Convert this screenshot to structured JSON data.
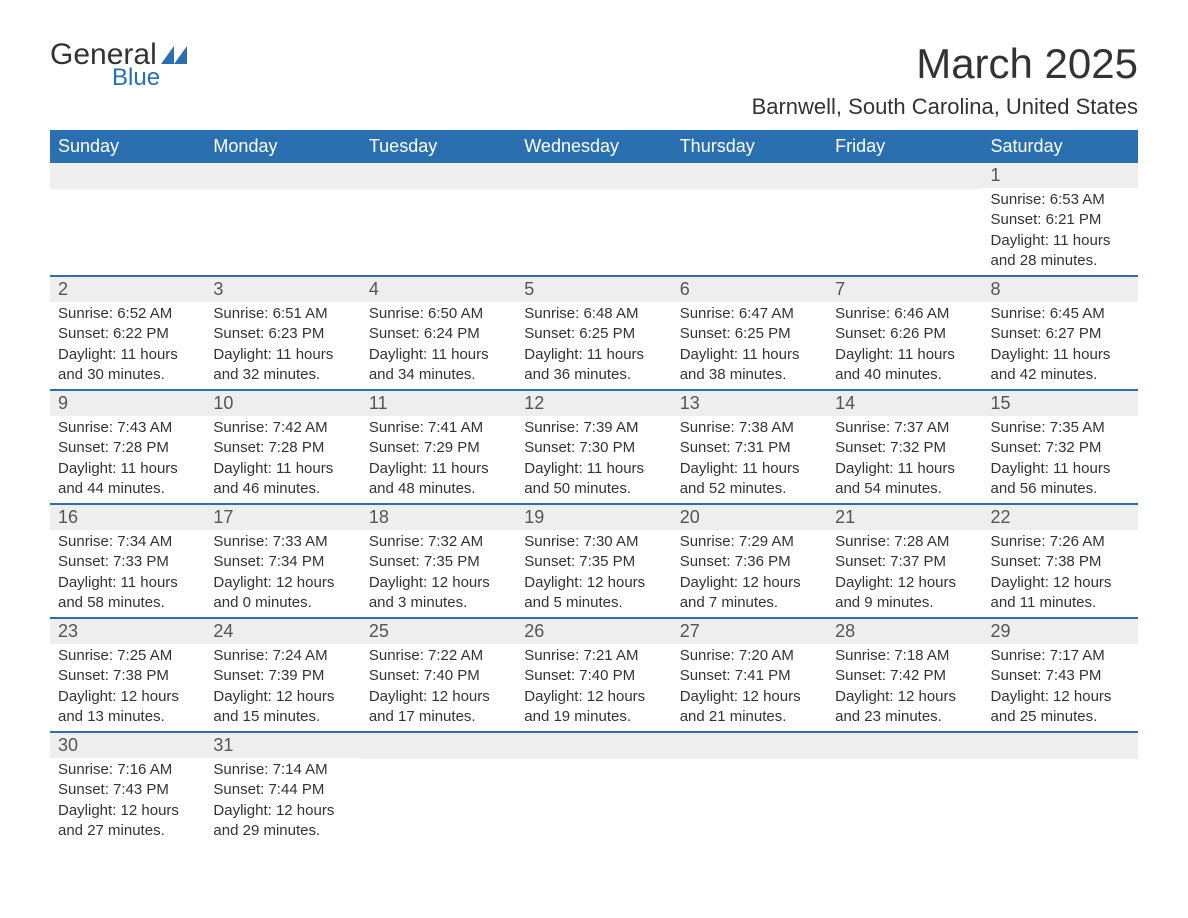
{
  "logo": {
    "word1": "General",
    "word2": "Blue",
    "shape_color": "#2a6fb0"
  },
  "title": "March 2025",
  "subtitle": "Barnwell, South Carolina, United States",
  "colors": {
    "header_bg": "#2a6fb0",
    "header_text": "#ffffff",
    "daynum_bg": "#eeeeee",
    "row_divider": "#2a6fb0",
    "body_text": "#333333"
  },
  "weekdays": [
    "Sunday",
    "Monday",
    "Tuesday",
    "Wednesday",
    "Thursday",
    "Friday",
    "Saturday"
  ],
  "weeks": [
    [
      {
        "day": "",
        "lines": []
      },
      {
        "day": "",
        "lines": []
      },
      {
        "day": "",
        "lines": []
      },
      {
        "day": "",
        "lines": []
      },
      {
        "day": "",
        "lines": []
      },
      {
        "day": "",
        "lines": []
      },
      {
        "day": "1",
        "lines": [
          "Sunrise: 6:53 AM",
          "Sunset: 6:21 PM",
          "Daylight: 11 hours and 28 minutes."
        ]
      }
    ],
    [
      {
        "day": "2",
        "lines": [
          "Sunrise: 6:52 AM",
          "Sunset: 6:22 PM",
          "Daylight: 11 hours and 30 minutes."
        ]
      },
      {
        "day": "3",
        "lines": [
          "Sunrise: 6:51 AM",
          "Sunset: 6:23 PM",
          "Daylight: 11 hours and 32 minutes."
        ]
      },
      {
        "day": "4",
        "lines": [
          "Sunrise: 6:50 AM",
          "Sunset: 6:24 PM",
          "Daylight: 11 hours and 34 minutes."
        ]
      },
      {
        "day": "5",
        "lines": [
          "Sunrise: 6:48 AM",
          "Sunset: 6:25 PM",
          "Daylight: 11 hours and 36 minutes."
        ]
      },
      {
        "day": "6",
        "lines": [
          "Sunrise: 6:47 AM",
          "Sunset: 6:25 PM",
          "Daylight: 11 hours and 38 minutes."
        ]
      },
      {
        "day": "7",
        "lines": [
          "Sunrise: 6:46 AM",
          "Sunset: 6:26 PM",
          "Daylight: 11 hours and 40 minutes."
        ]
      },
      {
        "day": "8",
        "lines": [
          "Sunrise: 6:45 AM",
          "Sunset: 6:27 PM",
          "Daylight: 11 hours and 42 minutes."
        ]
      }
    ],
    [
      {
        "day": "9",
        "lines": [
          "Sunrise: 7:43 AM",
          "Sunset: 7:28 PM",
          "Daylight: 11 hours and 44 minutes."
        ]
      },
      {
        "day": "10",
        "lines": [
          "Sunrise: 7:42 AM",
          "Sunset: 7:28 PM",
          "Daylight: 11 hours and 46 minutes."
        ]
      },
      {
        "day": "11",
        "lines": [
          "Sunrise: 7:41 AM",
          "Sunset: 7:29 PM",
          "Daylight: 11 hours and 48 minutes."
        ]
      },
      {
        "day": "12",
        "lines": [
          "Sunrise: 7:39 AM",
          "Sunset: 7:30 PM",
          "Daylight: 11 hours and 50 minutes."
        ]
      },
      {
        "day": "13",
        "lines": [
          "Sunrise: 7:38 AM",
          "Sunset: 7:31 PM",
          "Daylight: 11 hours and 52 minutes."
        ]
      },
      {
        "day": "14",
        "lines": [
          "Sunrise: 7:37 AM",
          "Sunset: 7:32 PM",
          "Daylight: 11 hours and 54 minutes."
        ]
      },
      {
        "day": "15",
        "lines": [
          "Sunrise: 7:35 AM",
          "Sunset: 7:32 PM",
          "Daylight: 11 hours and 56 minutes."
        ]
      }
    ],
    [
      {
        "day": "16",
        "lines": [
          "Sunrise: 7:34 AM",
          "Sunset: 7:33 PM",
          "Daylight: 11 hours and 58 minutes."
        ]
      },
      {
        "day": "17",
        "lines": [
          "Sunrise: 7:33 AM",
          "Sunset: 7:34 PM",
          "Daylight: 12 hours and 0 minutes."
        ]
      },
      {
        "day": "18",
        "lines": [
          "Sunrise: 7:32 AM",
          "Sunset: 7:35 PM",
          "Daylight: 12 hours and 3 minutes."
        ]
      },
      {
        "day": "19",
        "lines": [
          "Sunrise: 7:30 AM",
          "Sunset: 7:35 PM",
          "Daylight: 12 hours and 5 minutes."
        ]
      },
      {
        "day": "20",
        "lines": [
          "Sunrise: 7:29 AM",
          "Sunset: 7:36 PM",
          "Daylight: 12 hours and 7 minutes."
        ]
      },
      {
        "day": "21",
        "lines": [
          "Sunrise: 7:28 AM",
          "Sunset: 7:37 PM",
          "Daylight: 12 hours and 9 minutes."
        ]
      },
      {
        "day": "22",
        "lines": [
          "Sunrise: 7:26 AM",
          "Sunset: 7:38 PM",
          "Daylight: 12 hours and 11 minutes."
        ]
      }
    ],
    [
      {
        "day": "23",
        "lines": [
          "Sunrise: 7:25 AM",
          "Sunset: 7:38 PM",
          "Daylight: 12 hours and 13 minutes."
        ]
      },
      {
        "day": "24",
        "lines": [
          "Sunrise: 7:24 AM",
          "Sunset: 7:39 PM",
          "Daylight: 12 hours and 15 minutes."
        ]
      },
      {
        "day": "25",
        "lines": [
          "Sunrise: 7:22 AM",
          "Sunset: 7:40 PM",
          "Daylight: 12 hours and 17 minutes."
        ]
      },
      {
        "day": "26",
        "lines": [
          "Sunrise: 7:21 AM",
          "Sunset: 7:40 PM",
          "Daylight: 12 hours and 19 minutes."
        ]
      },
      {
        "day": "27",
        "lines": [
          "Sunrise: 7:20 AM",
          "Sunset: 7:41 PM",
          "Daylight: 12 hours and 21 minutes."
        ]
      },
      {
        "day": "28",
        "lines": [
          "Sunrise: 7:18 AM",
          "Sunset: 7:42 PM",
          "Daylight: 12 hours and 23 minutes."
        ]
      },
      {
        "day": "29",
        "lines": [
          "Sunrise: 7:17 AM",
          "Sunset: 7:43 PM",
          "Daylight: 12 hours and 25 minutes."
        ]
      }
    ],
    [
      {
        "day": "30",
        "lines": [
          "Sunrise: 7:16 AM",
          "Sunset: 7:43 PM",
          "Daylight: 12 hours and 27 minutes."
        ]
      },
      {
        "day": "31",
        "lines": [
          "Sunrise: 7:14 AM",
          "Sunset: 7:44 PM",
          "Daylight: 12 hours and 29 minutes."
        ]
      },
      {
        "day": "",
        "lines": []
      },
      {
        "day": "",
        "lines": []
      },
      {
        "day": "",
        "lines": []
      },
      {
        "day": "",
        "lines": []
      },
      {
        "day": "",
        "lines": []
      }
    ]
  ]
}
